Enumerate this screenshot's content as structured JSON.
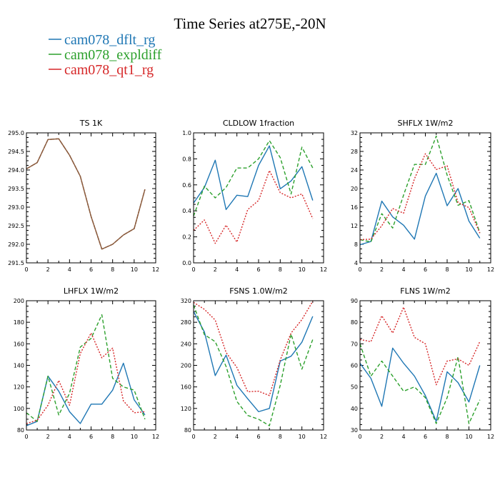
{
  "figure": {
    "title": "Time Series at275E,-20N",
    "legend": [
      {
        "label": "cam078_dflt_rg",
        "color": "#1f77b4",
        "dash": "solid"
      },
      {
        "label": "cam078_expldiff",
        "color": "#2ca02c",
        "dash": "dashed"
      },
      {
        "label": "cam078_qt1_rg",
        "color": "#d62728",
        "dash": "dotted"
      }
    ]
  },
  "chart_data": [
    {
      "type": "line",
      "title": "TS  1K",
      "x": [
        0,
        1,
        2,
        3,
        4,
        5,
        6,
        7,
        8,
        9,
        10,
        11
      ],
      "xlim": [
        0,
        12
      ],
      "xticks": [
        0,
        2,
        4,
        6,
        8,
        10,
        12
      ],
      "ylim": [
        291.5,
        295.0
      ],
      "yticks": [
        "291.5",
        "292.0",
        "292.5",
        "293.0",
        "293.5",
        "294.0",
        "294.5",
        "295.0"
      ],
      "series": [
        {
          "name": "cam078_dflt_rg",
          "values": [
            294.03,
            294.2,
            294.82,
            294.84,
            294.4,
            293.83,
            292.75,
            291.87,
            292.0,
            292.25,
            292.42,
            293.48
          ]
        },
        {
          "name": "cam078_expldiff",
          "values": [
            294.03,
            294.2,
            294.82,
            294.84,
            294.4,
            293.83,
            292.75,
            291.87,
            292.0,
            292.25,
            292.42,
            293.48
          ]
        },
        {
          "name": "cam078_qt1_rg",
          "values": [
            294.03,
            294.2,
            294.82,
            294.84,
            294.4,
            293.83,
            292.75,
            291.87,
            292.0,
            292.25,
            292.42,
            293.48
          ]
        }
      ]
    },
    {
      "type": "line",
      "title": "CLDLOW  1fraction",
      "x": [
        0,
        1,
        2,
        3,
        4,
        5,
        6,
        7,
        8,
        9,
        10,
        11
      ],
      "xlim": [
        0,
        12
      ],
      "xticks": [
        0,
        2,
        4,
        6,
        8,
        10,
        12
      ],
      "ylim": [
        0.0,
        1.0
      ],
      "yticks": [
        "0.0",
        "0.2",
        "0.4",
        "0.6",
        "0.8",
        "1.0"
      ],
      "series": [
        {
          "name": "cam078_dflt_rg",
          "values": [
            0.46,
            0.58,
            0.79,
            0.41,
            0.52,
            0.51,
            0.75,
            0.9,
            0.57,
            0.63,
            0.74,
            0.48
          ]
        },
        {
          "name": "cam078_expldiff",
          "values": [
            0.36,
            0.59,
            0.5,
            0.58,
            0.73,
            0.73,
            0.8,
            0.94,
            0.81,
            0.53,
            0.89,
            0.73
          ]
        },
        {
          "name": "cam078_qt1_rg",
          "values": [
            0.25,
            0.33,
            0.15,
            0.29,
            0.16,
            0.41,
            0.48,
            0.71,
            0.54,
            0.5,
            0.53,
            0.34
          ]
        }
      ]
    },
    {
      "type": "line",
      "title": "SHFLX  1W/m2",
      "x": [
        0,
        1,
        2,
        3,
        4,
        5,
        6,
        7,
        8,
        9,
        10,
        11
      ],
      "xlim": [
        0,
        12
      ],
      "xticks": [
        0,
        2,
        4,
        6,
        8,
        10,
        12
      ],
      "ylim": [
        4,
        32
      ],
      "yticks": [
        "4",
        "8",
        "12",
        "16",
        "20",
        "24",
        "28",
        "32"
      ],
      "series": [
        {
          "name": "cam078_dflt_rg",
          "values": [
            7.9,
            8.6,
            17.3,
            13.9,
            12.1,
            9.1,
            18.4,
            23.3,
            16.3,
            20.0,
            13.0,
            9.3
          ]
        },
        {
          "name": "cam078_expldiff",
          "values": [
            9.0,
            8.5,
            14.6,
            11.5,
            18.6,
            25.2,
            25.2,
            31.3,
            22.9,
            16.4,
            17.4,
            10.5
          ]
        },
        {
          "name": "cam078_qt1_rg",
          "values": [
            9.0,
            9.1,
            12.0,
            15.7,
            14.7,
            22.1,
            27.5,
            24.1,
            24.9,
            17.0,
            15.9,
            10.4
          ]
        }
      ]
    },
    {
      "type": "line",
      "title": "LHFLX  1W/m2",
      "x": [
        0,
        1,
        2,
        3,
        4,
        5,
        6,
        7,
        8,
        9,
        10,
        11
      ],
      "xlim": [
        0,
        12
      ],
      "xticks": [
        0,
        2,
        4,
        6,
        8,
        10,
        12
      ],
      "ylim": [
        80,
        200
      ],
      "yticks": [
        "80",
        "100",
        "120",
        "140",
        "160",
        "180",
        "200"
      ],
      "series": [
        {
          "name": "cam078_dflt_rg",
          "values": [
            84,
            88,
            130,
            116,
            97,
            86,
            104,
            104,
            117,
            142,
            108,
            94
          ]
        },
        {
          "name": "cam078_expldiff",
          "values": [
            96,
            88,
            130,
            94,
            114,
            157,
            165,
            187,
            128,
            120,
            117,
            90
          ]
        },
        {
          "name": "cam078_qt1_rg",
          "values": [
            86,
            89,
            103,
            126,
            103,
            151,
            170,
            147,
            156,
            107,
            96,
            97
          ]
        }
      ]
    },
    {
      "type": "line",
      "title": "FSNS  1.0W/m2",
      "x": [
        0,
        1,
        2,
        3,
        4,
        5,
        6,
        7,
        8,
        9,
        10,
        11
      ],
      "xlim": [
        0,
        12
      ],
      "xticks": [
        0,
        2,
        4,
        6,
        8,
        10,
        12
      ],
      "ylim": [
        80,
        320
      ],
      "yticks": [
        "80",
        "120",
        "160",
        "200",
        "240",
        "280",
        "320"
      ],
      "series": [
        {
          "name": "cam078_dflt_rg",
          "values": [
            300,
            262,
            181,
            219,
            163,
            138,
            114,
            120,
            208,
            217,
            243,
            291
          ]
        },
        {
          "name": "cam078_expldiff",
          "values": [
            312,
            257,
            244,
            198,
            133,
            107,
            100,
            88,
            163,
            258,
            193,
            248
          ]
        },
        {
          "name": "cam078_qt1_rg",
          "values": [
            317,
            304,
            284,
            224,
            196,
            151,
            152,
            144,
            210,
            260,
            285,
            319
          ]
        }
      ]
    },
    {
      "type": "line",
      "title": "FLNS  1W/m2",
      "x": [
        0,
        1,
        2,
        3,
        4,
        5,
        6,
        7,
        8,
        9,
        10,
        11
      ],
      "xlim": [
        0,
        12
      ],
      "xticks": [
        0,
        2,
        4,
        6,
        8,
        10,
        12
      ],
      "ylim": [
        30,
        90
      ],
      "yticks": [
        "30",
        "40",
        "50",
        "60",
        "70",
        "80",
        "90"
      ],
      "series": [
        {
          "name": "cam078_dflt_rg",
          "values": [
            61,
            54,
            41,
            68,
            61,
            55,
            46,
            34,
            57,
            52,
            43,
            60
          ]
        },
        {
          "name": "cam078_expldiff",
          "values": [
            70,
            55,
            62,
            55,
            48,
            50,
            45,
            33,
            45,
            64,
            33,
            44
          ]
        },
        {
          "name": "cam078_qt1_rg",
          "values": [
            72,
            71,
            83,
            75,
            87,
            73,
            70,
            51,
            62,
            63,
            60,
            71
          ]
        }
      ]
    }
  ]
}
